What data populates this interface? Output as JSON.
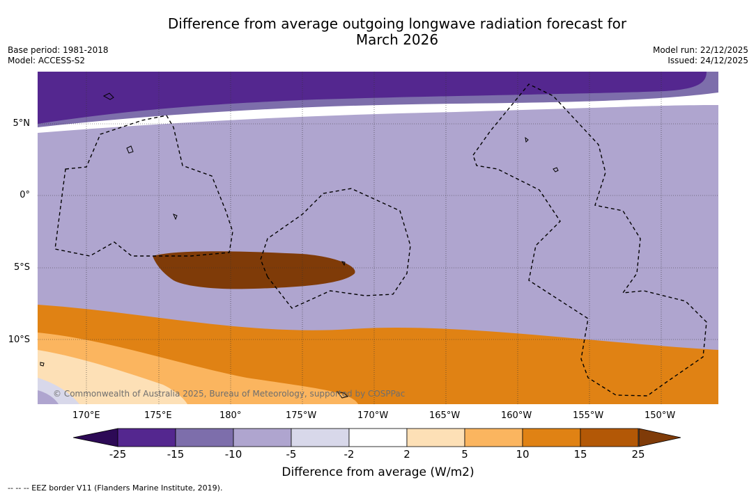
{
  "header": {
    "title_line1": "Difference from average outgoing longwave radiation forecast for",
    "title_line2": "March 2026",
    "base_period": "Base period: 1981-2018",
    "model": "Model: ACCESS-S2",
    "model_run": "Model run: 22/12/2025",
    "issued": "Issued: 24/12/2025"
  },
  "map": {
    "credit": "© Commonwealth of Australia 2025, Bureau of Meteorology, supported by COSPPac",
    "lat_labels": [
      "5°N",
      "0°",
      "5°S",
      "10°S"
    ],
    "lon_labels": [
      "170°E",
      "175°E",
      "180°",
      "175°W",
      "170°W",
      "165°W",
      "160°W",
      "155°W",
      "150°W"
    ]
  },
  "colorbar": {
    "ticks": [
      "-25",
      "-15",
      "-10",
      "-5",
      "-2",
      "2",
      "5",
      "10",
      "15",
      "25"
    ],
    "colors": [
      "#2d0a56",
      "#54278f",
      "#7d6eab",
      "#afa5cf",
      "#d8d8ea",
      "#ffffff",
      "#fde0b6",
      "#fbb55f",
      "#e08214",
      "#b35806",
      "#7f3b08"
    ],
    "label": "Difference from average (W/m2)"
  },
  "legend": {
    "eez_note": "--  --  -- EEZ border V11 (Flanders Marine Institute, 2019)."
  }
}
